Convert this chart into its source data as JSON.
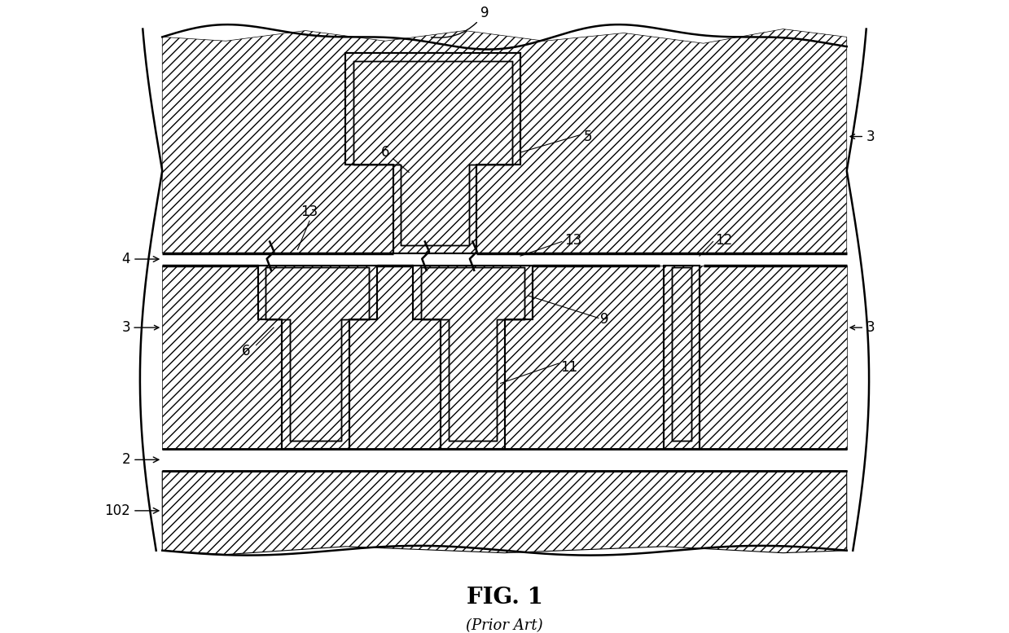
{
  "title": "FIG. 1",
  "subtitle": "(Prior Art)",
  "background": "#ffffff",
  "line_color": "#000000",
  "fig_width": 12.39,
  "fig_height": 7.77,
  "hatch_density": "///",
  "lw_main": 1.5,
  "lw_thick": 2.5,
  "lw_border": 1.8,
  "label_fontsize": 12
}
